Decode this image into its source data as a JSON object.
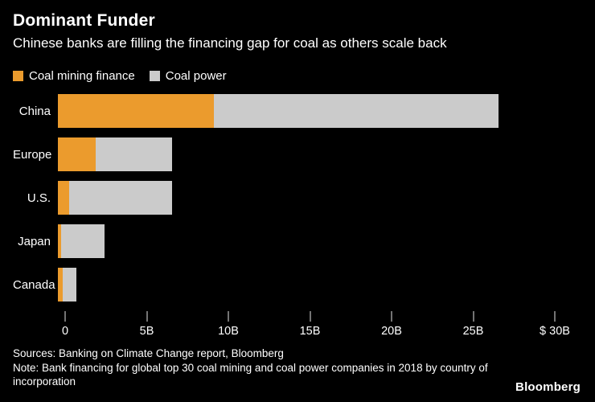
{
  "header": {
    "title": "Dominant Funder",
    "subtitle": "Chinese banks are filling the financing gap for coal as others scale back"
  },
  "legend": [
    {
      "label": "Coal mining finance",
      "color": "#EB9B2D"
    },
    {
      "label": "Coal power",
      "color": "#CBCBCB"
    }
  ],
  "chart_data": {
    "type": "bar",
    "orientation": "horizontal",
    "stacked": true,
    "categories": [
      "China",
      "Europe",
      "U.S.",
      "Japan",
      "Canada"
    ],
    "series": [
      {
        "name": "Coal mining finance",
        "color": "#EB9B2D",
        "values": [
          9.4,
          2.3,
          0.7,
          0.2,
          0.3
        ]
      },
      {
        "name": "Coal power",
        "color": "#CBCBCB",
        "values": [
          17.2,
          4.6,
          6.2,
          2.6,
          0.8
        ]
      }
    ],
    "x_ticks": [
      "0",
      "5B",
      "10B",
      "15B",
      "20B",
      "25B",
      "$ 30B"
    ],
    "x_tick_values": [
      0,
      5,
      10,
      15,
      20,
      25,
      30
    ],
    "xlim": [
      0,
      30
    ],
    "unit": "billions USD",
    "legend_position": "top",
    "grid": false,
    "background": "#000000"
  },
  "footer": {
    "sources": "Sources: Banking on Climate Change report, Bloomberg",
    "note": "Note: Bank financing for global top 30 coal mining and coal power companies in 2018 by country of incorporation",
    "brand": "Bloomberg"
  }
}
